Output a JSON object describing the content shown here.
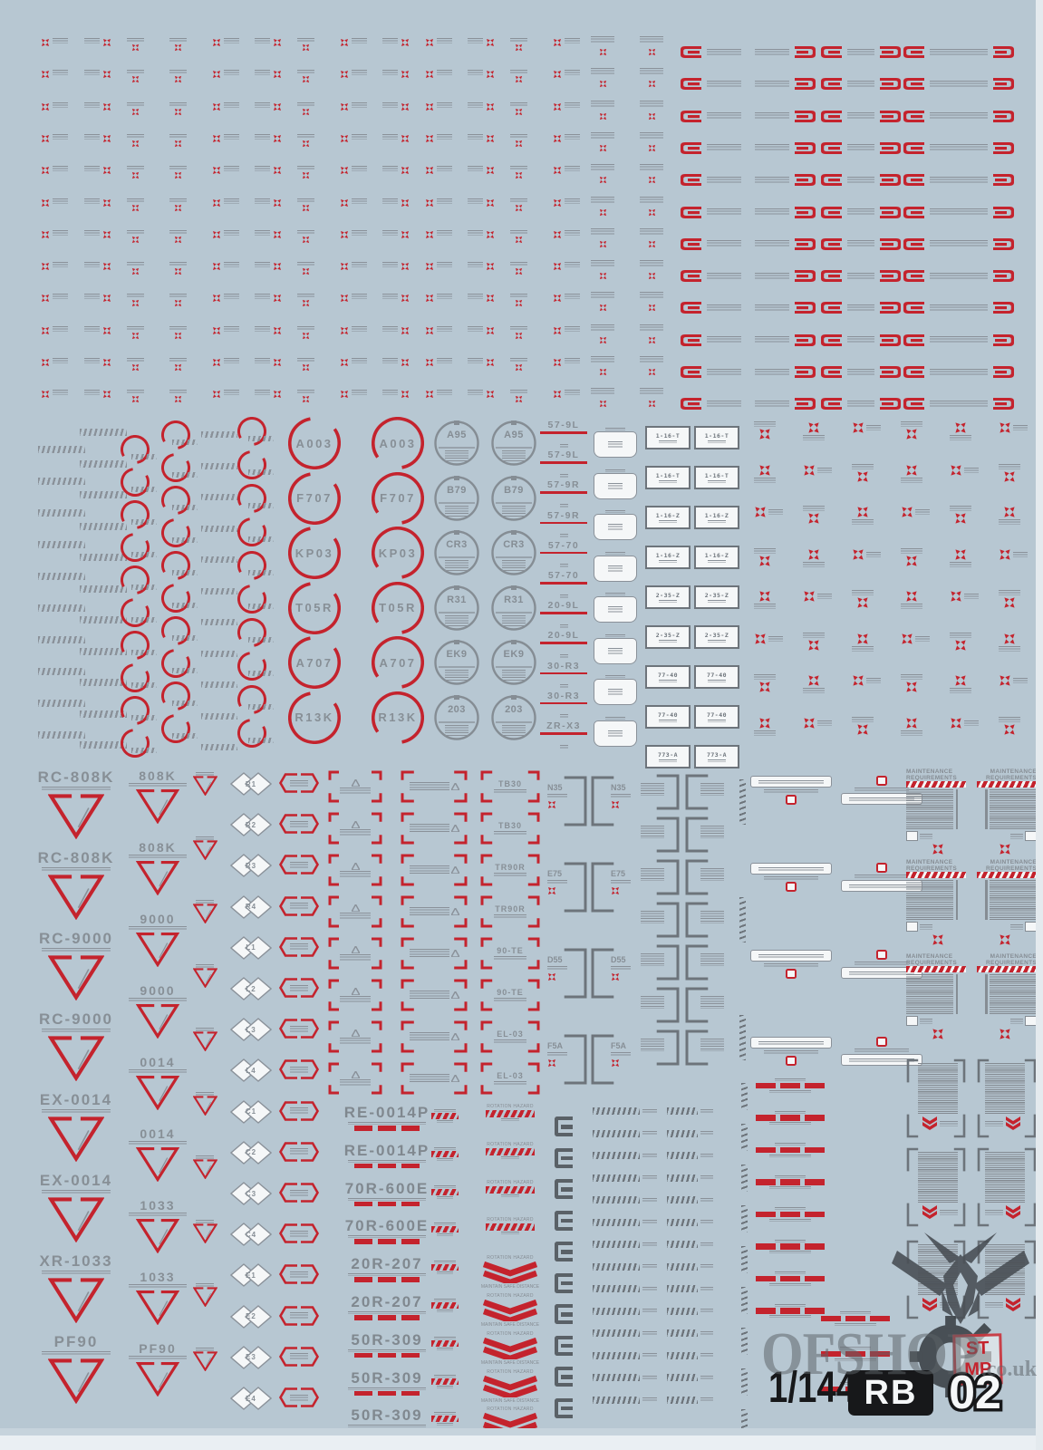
{
  "colors": {
    "bg": "#b7c7d2",
    "red": "#c4232d",
    "gray": "#8a9199",
    "darkgray": "#5a6167",
    "boxgray": "#6d747b",
    "white": "#f5f7f8",
    "black": "#17181a"
  },
  "mid_section": {
    "red_circle_codes": [
      "A003",
      "F707",
      "KP03",
      "T05R",
      "A707",
      "R13K"
    ],
    "gray_circle_codes": [
      "A95",
      "B79",
      "CR3",
      "R31",
      "EK9",
      "203"
    ],
    "underline_codes": [
      "57-9L",
      "57-9L",
      "57-9R",
      "57-9R",
      "57-70",
      "57-70",
      "20-9L",
      "20-9L",
      "30-R3",
      "30-R3",
      "ZR-X3"
    ],
    "rect_box_codes": [
      "1-16-T",
      "1-16-T",
      "1-16-Z",
      "1-16-Z",
      "2-35-Z",
      "2-35-Z",
      "77-40",
      "77-40",
      "773-A"
    ]
  },
  "bottom_section": {
    "triangle_codes_large": [
      "RC-808K",
      "RC-808K",
      "RC-9000",
      "RC-9000",
      "EX-0014",
      "EX-0014",
      "XR-1033",
      "PF90"
    ],
    "triangle_codes_medium": [
      "808K",
      "808K",
      "9000",
      "9000",
      "0014",
      "0014",
      "1033",
      "1033",
      "PF90"
    ],
    "diamond_codes": [
      "R1",
      "R2",
      "R3",
      "R4",
      "L1",
      "L2",
      "L3",
      "L4",
      "C1",
      "C2",
      "C3",
      "C4",
      "E1",
      "E2",
      "E3",
      "E4"
    ],
    "bracket_codes": [
      "TB30",
      "TB30",
      "TR90R",
      "TR90R",
      "90-TE",
      "90-TE",
      "EL-03",
      "EL-03"
    ],
    "panel_codes": [
      "N35",
      "E75",
      "D55",
      "F5A"
    ],
    "unit_codes": [
      "RE-0014P",
      "RE-0014P",
      "70R-600E",
      "70R-600E",
      "20R-207",
      "20R-207",
      "50R-309",
      "50R-309",
      "50R-309"
    ],
    "rotation_hazard_line1": "ROTATION HAZARD",
    "rotation_hazard_line2": "MAINTAIN SAFE DISTANCE",
    "maintenance_line1": "MAINTENANCE",
    "maintenance_line2": "REQUIREMENTS"
  },
  "footer": {
    "scale_label": "1/144",
    "series_code_letters": "RB",
    "series_code_digits": "02",
    "stamp_line1": "ST",
    "stamp_line2": "MP",
    "watermark_text": "OFSHOP",
    "watermark_suffix": ".co.uk"
  }
}
